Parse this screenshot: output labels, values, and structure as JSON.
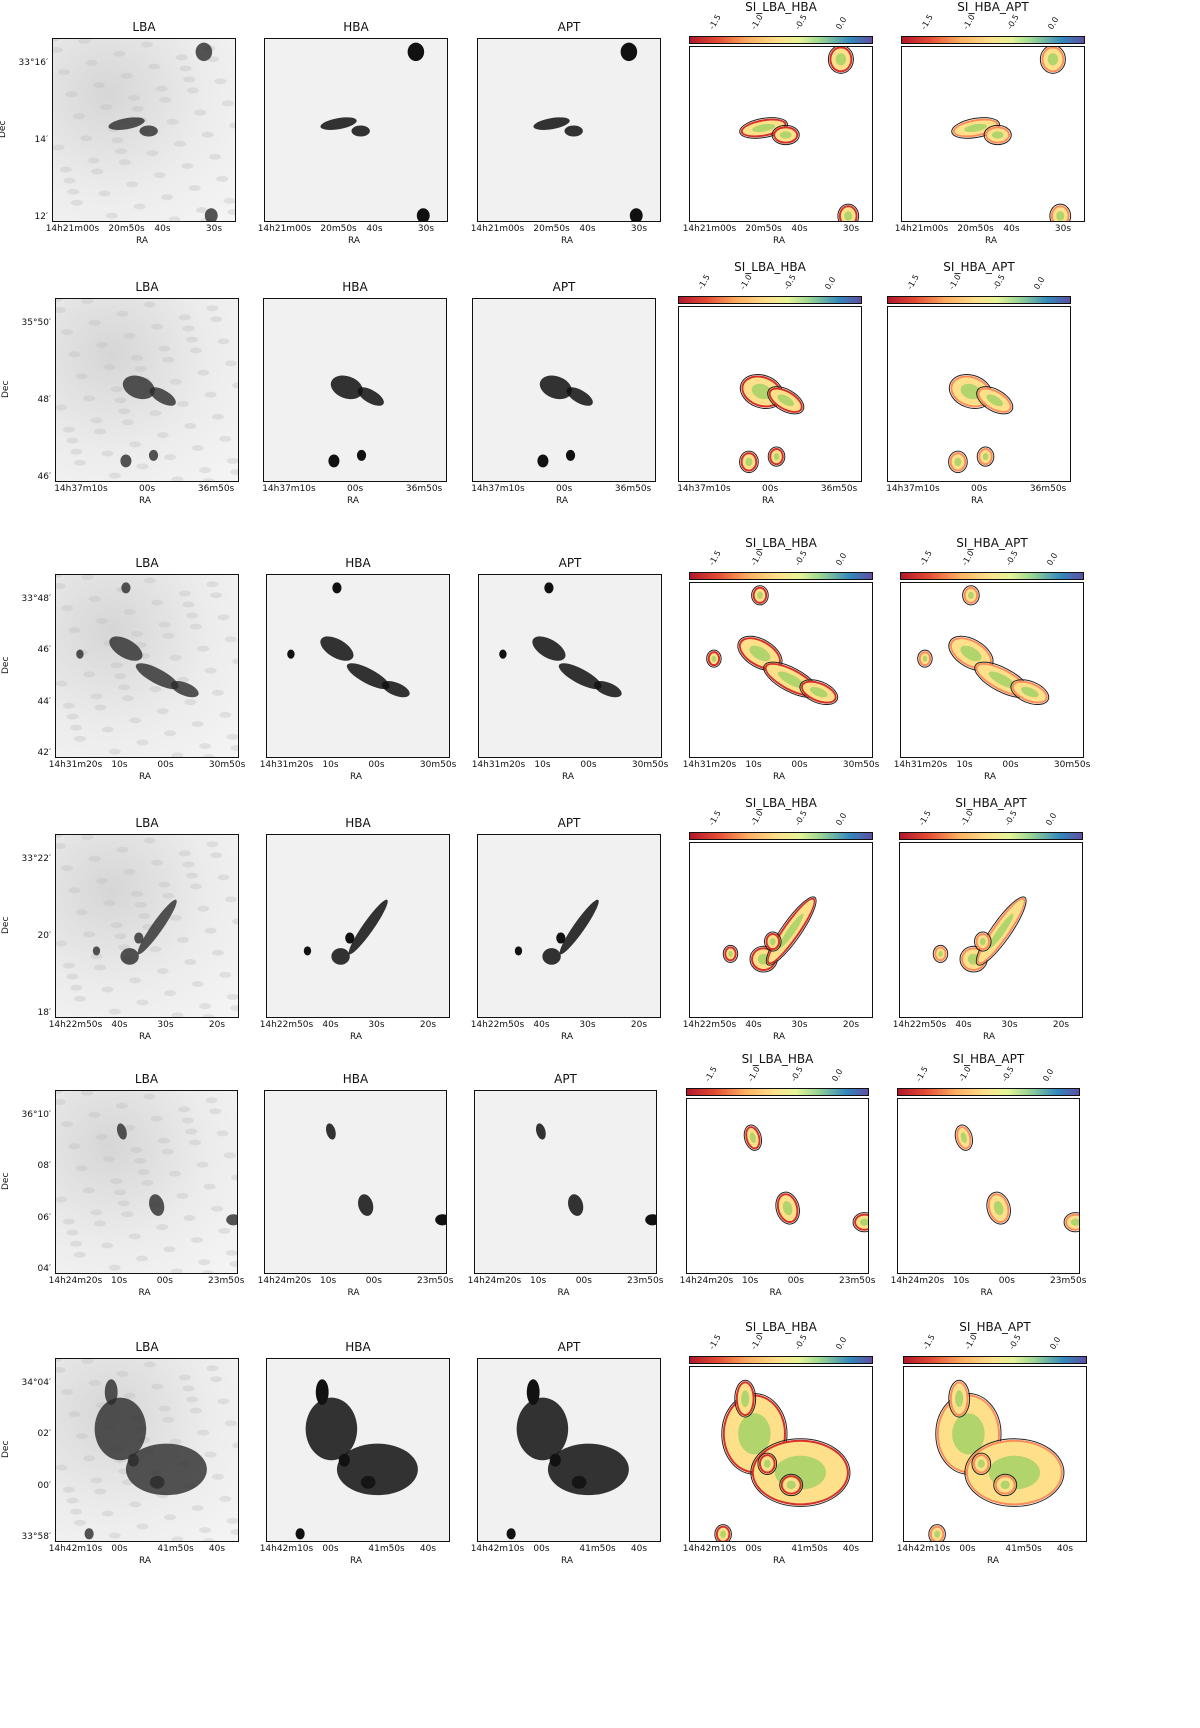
{
  "panel_titles": {
    "lba": "LBA",
    "hba": "HBA",
    "apt": "APT",
    "si_lba_hba": "SI_LBA_HBA",
    "si_hba_apt": "SI_HBA_APT"
  },
  "axis_labels": {
    "x": "RA",
    "y": "Dec"
  },
  "colorbar_ticks": [
    "-1.5",
    "-1.0",
    "-0.5",
    "0.0"
  ],
  "rows": [
    {
      "yticks": [
        "33°16′",
        "14′",
        "12′"
      ],
      "xticks": [
        "14h21m00s",
        "20m50s",
        "40s",
        "30s"
      ]
    },
    {
      "yticks": [
        "35°50′",
        "48′",
        "46′"
      ],
      "xticks": [
        "14h37m10s",
        "00s",
        "36m50s"
      ]
    },
    {
      "yticks": [
        "33°48′",
        "46′",
        "44′",
        "42′"
      ],
      "xticks": [
        "14h31m20s",
        "10s",
        "00s",
        "30m50s"
      ]
    },
    {
      "yticks": [
        "33°22′",
        "20′",
        "18′"
      ],
      "xticks": [
        "14h22m50s",
        "40s",
        "30s",
        "20s"
      ]
    },
    {
      "yticks": [
        "36°10′",
        "08′",
        "06′",
        "04′"
      ],
      "xticks": [
        "14h24m20s",
        "10s",
        "00s",
        "23m50s"
      ]
    },
    {
      "yticks": [
        "34°04′",
        "02′",
        "00′",
        "33°58′"
      ],
      "xticks": [
        "14h42m10s",
        "00s",
        "41m50s",
        "40s"
      ]
    }
  ],
  "colors": {
    "source_gray": "#111111",
    "contour": "#222222",
    "si_red": "#d73027",
    "si_orange": "#fc8d59",
    "si_yellow": "#fee08b",
    "si_green": "#91cf60",
    "si_blue": "#3288bd"
  }
}
